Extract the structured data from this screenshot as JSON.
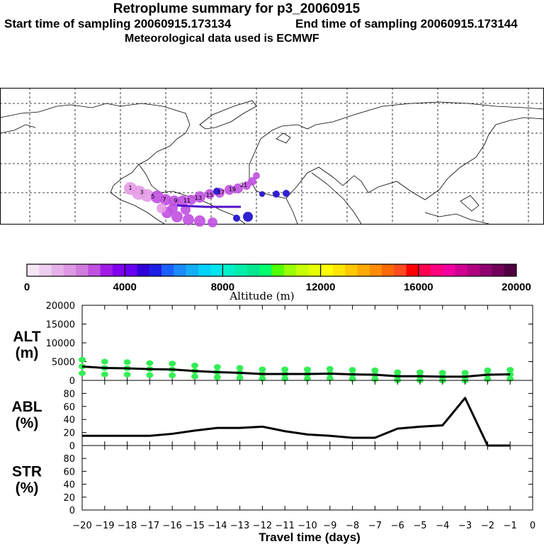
{
  "header": {
    "title": "Retroplume summary for p3_20060915",
    "start_sampling": "Start time of sampling 20060915.173134",
    "end_sampling": "End time of sampling 20060915.173144",
    "met_data": "Meteorological data used is ECMWF"
  },
  "map": {
    "plume_labels": [
      "1",
      "3",
      "5",
      "7",
      "9",
      "11",
      "13",
      "15",
      "17",
      "19",
      "21"
    ],
    "colors": {
      "plume_light": "#e59be6",
      "plume_mid": "#c050e0",
      "plume_dark": "#5010c8",
      "plume_blue": "#3020d0"
    }
  },
  "colorbar": {
    "tick_labels": [
      "0",
      "4000",
      "8000",
      "12000",
      "16000",
      "20000"
    ],
    "label": "Altitude (m)",
    "colors": [
      "#f6e6f6",
      "#eecdef",
      "#e6b2e9",
      "#de98e4",
      "#d07cdc",
      "#c050e0",
      "#a01ce6",
      "#8000ef",
      "#6800f5",
      "#3000d6",
      "#1e1ee6",
      "#1a5fff",
      "#1b8bff",
      "#14aef5",
      "#00d2ff",
      "#00e6ee",
      "#00f0c8",
      "#00eeaa",
      "#00e690",
      "#00ff6e",
      "#50ff00",
      "#9aff00",
      "#c8ff00",
      "#e6ff00",
      "#ffff00",
      "#ffe600",
      "#ffc800",
      "#ffaa00",
      "#ff8c00",
      "#ff6900",
      "#ff4b1e",
      "#ff0000",
      "#ff0050",
      "#ff0080",
      "#f000a0",
      "#d00090",
      "#b00080",
      "#900070",
      "#70005a",
      "#500040"
    ]
  },
  "chart_data": [
    {
      "type": "line",
      "name": "ALT",
      "ylabel": "ALT\n(m)",
      "ylabel_top": "ALT",
      "ylabel_bottom": "(m)",
      "x": [
        -20,
        -19,
        -18,
        -17,
        -16,
        -15,
        -14,
        -13,
        -12,
        -11,
        -10,
        -9,
        -8,
        -7,
        -6,
        -5,
        -4,
        -3,
        -2,
        -1
      ],
      "values": [
        3700,
        3300,
        3200,
        3000,
        2900,
        2500,
        2200,
        2000,
        1700,
        1700,
        1700,
        1800,
        1600,
        1500,
        1100,
        1100,
        1000,
        1000,
        1500,
        1600
      ],
      "ylim": [
        0,
        20000
      ],
      "yticks": [
        "0",
        "5000",
        "10000",
        "15000",
        "20000"
      ],
      "ytick_values": [
        0,
        5000,
        10000,
        15000,
        20000
      ],
      "marker_color": "#33ee55"
    },
    {
      "type": "line",
      "name": "ABL",
      "ylabel_top": "ABL",
      "ylabel_bottom": "(%)",
      "x": [
        -20,
        -19,
        -18,
        -17,
        -16,
        -15,
        -14,
        -13,
        -12,
        -11,
        -10,
        -9,
        -8,
        -7,
        -6,
        -5,
        -4,
        -3,
        -2,
        -1
      ],
      "values": [
        15,
        15,
        15,
        15,
        18,
        23,
        27,
        27,
        29,
        22,
        17,
        15,
        12,
        12,
        26,
        29,
        31,
        73,
        0,
        0
      ],
      "ylim": [
        0,
        100
      ],
      "yticks": [
        "0",
        "20",
        "40",
        "60",
        "80"
      ],
      "ytick_values": [
        0,
        20,
        40,
        60,
        80
      ]
    },
    {
      "type": "line",
      "name": "STR",
      "ylabel_top": "STR",
      "ylabel_bottom": "(%)",
      "x": [],
      "values": [],
      "ylim": [
        0,
        100
      ],
      "yticks": [
        "0",
        "20",
        "40",
        "60",
        "80"
      ],
      "ytick_values": [
        0,
        20,
        40,
        60,
        80
      ]
    }
  ],
  "xaxis": {
    "tick_labels": [
      "−20",
      "−19",
      "−18",
      "−17",
      "−16",
      "−15",
      "−14",
      "−13",
      "−12",
      "−11",
      "−10",
      "−9",
      "−8",
      "−7",
      "−6",
      "−5",
      "−4",
      "−3",
      "−2",
      "−1",
      "0"
    ],
    "tick_values": [
      -20,
      -19,
      -18,
      -17,
      -16,
      -15,
      -14,
      -13,
      -12,
      -11,
      -10,
      -9,
      -8,
      -7,
      -6,
      -5,
      -4,
      -3,
      -2,
      -1,
      0
    ],
    "xlim": [
      -20,
      0
    ],
    "label": "Travel time (days)"
  }
}
